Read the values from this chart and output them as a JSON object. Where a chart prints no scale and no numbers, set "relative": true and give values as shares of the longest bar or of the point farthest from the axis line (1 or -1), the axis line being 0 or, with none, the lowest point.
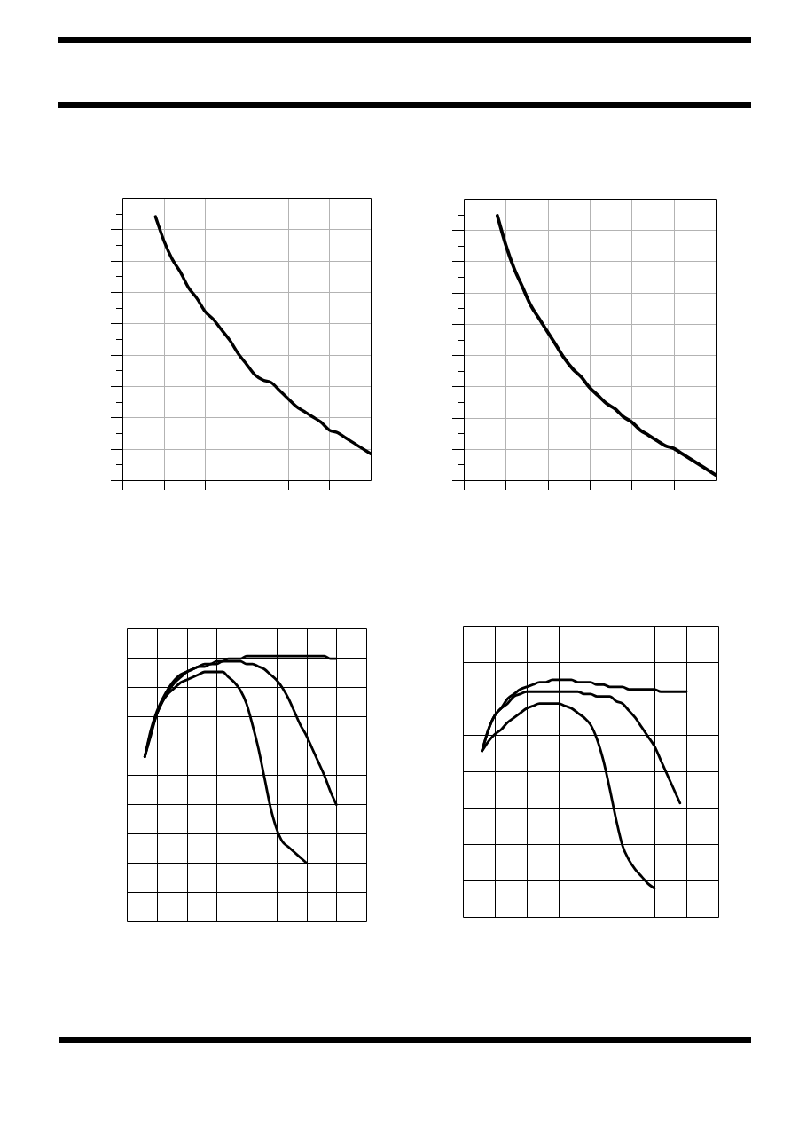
{
  "chart_data": [
    {
      "type": "line",
      "relative": true,
      "grid": true,
      "marker": "none",
      "categories": [
        null,
        null,
        null,
        null,
        null,
        null,
        null,
        null,
        null,
        null,
        null,
        null,
        null,
        null,
        null,
        null,
        null,
        null,
        null,
        null,
        null,
        null,
        null,
        null,
        null,
        null,
        null,
        null,
        null,
        null,
        null
      ],
      "series": [
        {
          "color": "#000000",
          "values": [
            null,
            null,
            null,
            null,
            1.0,
            0.91,
            0.84,
            0.79,
            0.73,
            0.69,
            0.64,
            0.61,
            0.57,
            0.53,
            0.48,
            0.44,
            0.4,
            0.38,
            0.37,
            0.34,
            0.31,
            0.28,
            0.26,
            0.24,
            0.22,
            0.19,
            0.18,
            0.16,
            0.14,
            0.12,
            0.1
          ]
        }
      ]
    },
    {
      "type": "line",
      "relative": true,
      "grid": true,
      "marker": "none",
      "categories": [
        null,
        null,
        null,
        null,
        null,
        null,
        null,
        null,
        null,
        null,
        null,
        null,
        null,
        null,
        null,
        null,
        null,
        null,
        null,
        null,
        null,
        null,
        null,
        null,
        null,
        null,
        null,
        null,
        null,
        null,
        null
      ],
      "series": [
        {
          "color": "#000000",
          "values": [
            null,
            null,
            null,
            null,
            1.0,
            0.89,
            0.8,
            0.73,
            0.66,
            0.61,
            0.56,
            0.51,
            0.46,
            0.42,
            0.39,
            0.35,
            0.32,
            0.29,
            0.27,
            0.24,
            0.22,
            0.19,
            0.17,
            0.15,
            0.13,
            0.12,
            0.1,
            0.08,
            0.06,
            0.04,
            0.02
          ]
        }
      ]
    },
    {
      "type": "line",
      "relative": true,
      "grid": true,
      "marker": "none",
      "categories": [
        null,
        null,
        null,
        null,
        null,
        null,
        null,
        null,
        null,
        null,
        null,
        null,
        null,
        null,
        null,
        null,
        null,
        null,
        null,
        null,
        null,
        null,
        null,
        null,
        null,
        null,
        null,
        null,
        null,
        null,
        null,
        null,
        null,
        null,
        null,
        null,
        null,
        null,
        null,
        null,
        null
      ],
      "series": [
        {
          "color": "#000000",
          "values": [
            null,
            null,
            null,
            0.62,
            0.72,
            0.79,
            0.84,
            0.88,
            0.91,
            0.93,
            0.94,
            0.95,
            0.96,
            0.97,
            0.97,
            0.98,
            0.98,
            0.99,
            0.99,
            0.99,
            1.0,
            1.0,
            1.0,
            1.0,
            1.0,
            1.0,
            1.0,
            1.0,
            1.0,
            1.0,
            1.0,
            1.0,
            1.0,
            1.0,
            0.99,
            0.99,
            null,
            null,
            null,
            null,
            null
          ]
        },
        {
          "color": "#000000",
          "values": [
            null,
            null,
            null,
            0.62,
            0.71,
            0.78,
            0.83,
            0.87,
            0.9,
            0.92,
            0.94,
            0.95,
            0.96,
            0.96,
            0.97,
            0.97,
            0.98,
            0.98,
            0.98,
            0.98,
            0.97,
            0.97,
            0.96,
            0.95,
            0.93,
            0.91,
            0.88,
            0.84,
            0.79,
            0.74,
            0.7,
            0.65,
            0.6,
            0.55,
            0.49,
            0.44,
            null,
            null,
            null,
            null,
            null
          ]
        },
        {
          "color": "#000000",
          "values": [
            null,
            null,
            null,
            0.62,
            0.7,
            0.78,
            0.83,
            0.86,
            0.88,
            0.9,
            0.91,
            0.92,
            0.93,
            0.94,
            0.94,
            0.94,
            0.94,
            0.92,
            0.9,
            0.87,
            0.82,
            0.74,
            0.65,
            0.54,
            0.43,
            0.35,
            0.3,
            0.28,
            0.26,
            0.24,
            0.22,
            null,
            null,
            null,
            null,
            null,
            null,
            null,
            null,
            null,
            null
          ]
        }
      ]
    },
    {
      "type": "line",
      "relative": true,
      "grid": true,
      "marker": "none",
      "categories": [
        null,
        null,
        null,
        null,
        null,
        null,
        null,
        null,
        null,
        null,
        null,
        null,
        null,
        null,
        null,
        null,
        null,
        null,
        null,
        null,
        null,
        null,
        null,
        null,
        null,
        null,
        null,
        null,
        null,
        null,
        null,
        null,
        null,
        null,
        null,
        null,
        null,
        null,
        null,
        null,
        null
      ],
      "series": [
        {
          "color": "#000000",
          "values": [
            null,
            null,
            null,
            0.7,
            0.79,
            0.85,
            0.88,
            0.92,
            0.94,
            0.96,
            0.97,
            0.98,
            0.99,
            0.99,
            1.0,
            1.0,
            1.0,
            1.0,
            0.99,
            0.99,
            0.99,
            0.98,
            0.98,
            0.97,
            0.97,
            0.97,
            0.96,
            0.96,
            0.96,
            0.96,
            0.96,
            0.95,
            0.95,
            0.95,
            0.95,
            0.95,
            null,
            null,
            null,
            null,
            null
          ]
        },
        {
          "color": "#000000",
          "values": [
            null,
            null,
            null,
            0.7,
            0.79,
            0.85,
            0.88,
            0.9,
            0.93,
            0.94,
            0.95,
            0.95,
            0.95,
            0.95,
            0.95,
            0.95,
            0.95,
            0.95,
            0.95,
            0.94,
            0.94,
            0.93,
            0.93,
            0.93,
            0.91,
            0.9,
            0.87,
            0.84,
            0.8,
            0.76,
            0.72,
            0.66,
            0.6,
            0.54,
            0.48,
            null,
            null,
            null,
            null,
            null,
            null
          ]
        },
        {
          "color": "#000000",
          "values": [
            null,
            null,
            null,
            0.7,
            0.74,
            0.77,
            0.79,
            0.82,
            0.84,
            0.86,
            0.88,
            0.89,
            0.9,
            0.9,
            0.9,
            0.9,
            0.89,
            0.88,
            0.86,
            0.84,
            0.81,
            0.75,
            0.66,
            0.54,
            0.41,
            0.3,
            0.24,
            0.2,
            0.17,
            0.14,
            0.12,
            null,
            null,
            null,
            null,
            null,
            null,
            null,
            null,
            null,
            null
          ]
        }
      ]
    }
  ]
}
